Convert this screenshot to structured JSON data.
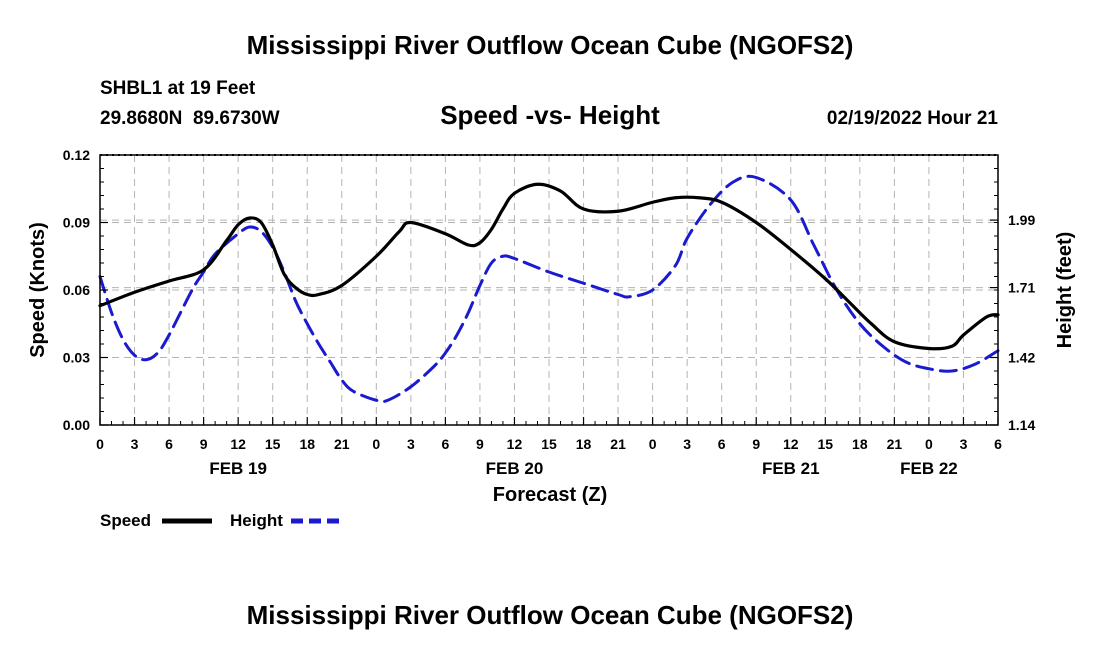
{
  "chart_data": {
    "type": "line",
    "title": "Mississippi River Outflow Ocean Cube (NGOFS2)",
    "subtitle": "Speed -vs- Height",
    "station_label": "SHBL1 at 19 Feet",
    "coordinates": "29.8680N  89.6730W",
    "timestamp": "02/19/2022 Hour 21",
    "xlabel": "Forecast (Z)",
    "ylabel_left": "Speed (Knots)",
    "ylabel_right": "Height (feet)",
    "x_range_hours": [
      0,
      78
    ],
    "ylim_left": [
      0,
      0.12
    ],
    "ylim_right": [
      1.14,
      2.26
    ],
    "left_ticks": [
      "0.00",
      "0.03",
      "0.06",
      "0.09",
      "0.12"
    ],
    "right_ticks": [
      "1.14",
      "1.42",
      "1.71",
      "1.99"
    ],
    "x_tick_labels": [
      "0",
      "3",
      "6",
      "9",
      "12",
      "15",
      "18",
      "21",
      "0",
      "3",
      "6",
      "9",
      "12",
      "15",
      "18",
      "21",
      "0",
      "3",
      "6",
      "9",
      "12",
      "15",
      "18",
      "21",
      "0",
      "3",
      "6"
    ],
    "date_labels": [
      {
        "label": "FEB 19",
        "hour": 12
      },
      {
        "label": "FEB 20",
        "hour": 36
      },
      {
        "label": "FEB 21",
        "hour": 60
      },
      {
        "label": "FEB 22",
        "hour": 72
      }
    ],
    "series": [
      {
        "name": "Speed",
        "axis": "left",
        "color": "#000000",
        "dash": false,
        "x": [
          0,
          3,
          6,
          9,
          11,
          12,
          13,
          14,
          15,
          16,
          17,
          18,
          19,
          21,
          24,
          26,
          27,
          30,
          32,
          33,
          34,
          35,
          36,
          38,
          40,
          42,
          45,
          48,
          50,
          52,
          54,
          57,
          60,
          63,
          65,
          67,
          69,
          72,
          74,
          75,
          77,
          78
        ],
        "y": [
          0.053,
          0.059,
          0.064,
          0.069,
          0.082,
          0.089,
          0.092,
          0.09,
          0.08,
          0.067,
          0.061,
          0.058,
          0.058,
          0.062,
          0.075,
          0.086,
          0.09,
          0.085,
          0.08,
          0.081,
          0.087,
          0.096,
          0.103,
          0.107,
          0.104,
          0.096,
          0.095,
          0.099,
          0.101,
          0.101,
          0.099,
          0.09,
          0.078,
          0.065,
          0.055,
          0.045,
          0.037,
          0.034,
          0.035,
          0.04,
          0.048,
          0.049
        ]
      },
      {
        "name": "Height",
        "axis": "left",
        "color": "#1a1ad0",
        "dash": true,
        "x": [
          0,
          1,
          2,
          3,
          4,
          5,
          6,
          8,
          9,
          10,
          12,
          13,
          14,
          15,
          16,
          17,
          18,
          19,
          20,
          21,
          22,
          24,
          25,
          27,
          29,
          30,
          31,
          32,
          33,
          34,
          35,
          36,
          39,
          42,
          45,
          46,
          48,
          50,
          51,
          53,
          55,
          57,
          60,
          62,
          64,
          66,
          68,
          70,
          72,
          74,
          76,
          78
        ],
        "y": [
          0.066,
          0.05,
          0.038,
          0.031,
          0.029,
          0.032,
          0.04,
          0.06,
          0.068,
          0.076,
          0.085,
          0.088,
          0.086,
          0.079,
          0.068,
          0.055,
          0.045,
          0.036,
          0.028,
          0.02,
          0.015,
          0.011,
          0.011,
          0.017,
          0.026,
          0.032,
          0.04,
          0.05,
          0.062,
          0.072,
          0.075,
          0.074,
          0.068,
          0.063,
          0.058,
          0.057,
          0.06,
          0.071,
          0.083,
          0.098,
          0.108,
          0.11,
          0.1,
          0.08,
          0.06,
          0.045,
          0.035,
          0.028,
          0.025,
          0.024,
          0.027,
          0.033
        ]
      }
    ],
    "legend": [
      {
        "name": "Speed",
        "color": "#000000",
        "dash": false
      },
      {
        "name": "Height",
        "color": "#1a1ad0",
        "dash": true
      }
    ]
  }
}
